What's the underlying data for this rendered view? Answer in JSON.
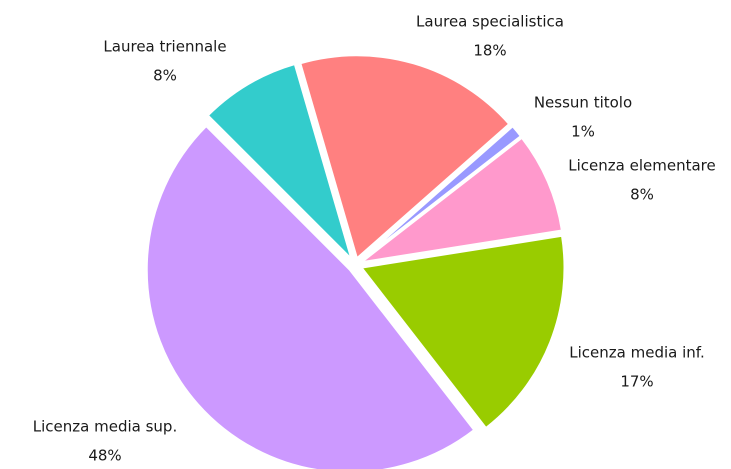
{
  "chart_data": {
    "type": "pie",
    "categories": [
      "Nessun titolo",
      "Licenza elementare",
      "Licenza media inf.",
      "Licenza media sup.",
      "Laurea triennale",
      "Laurea specialistica"
    ],
    "values": [
      1,
      8,
      17,
      48,
      8,
      18
    ],
    "value_labels": [
      "1%",
      "8%",
      "17%",
      "48%",
      "8%",
      "18%"
    ],
    "colors": [
      "#9999ff",
      "#ff99cc",
      "#99cc00",
      "#cc99ff",
      "#33cccc",
      "#ff8080"
    ]
  }
}
